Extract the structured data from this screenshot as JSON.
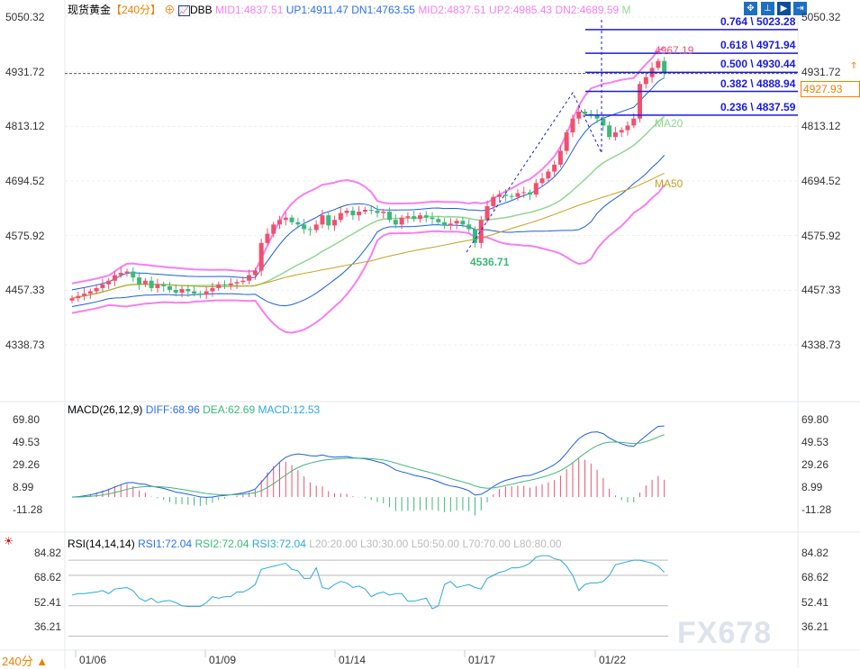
{
  "header": {
    "symbol": "现货黄金",
    "period": "【240分】",
    "indicator": "DBB",
    "mid1": "MID1:4837.51",
    "up1": "UP1:4911.47",
    "dn1": "DN1:4763.55",
    "mid2": "MID2:4837.51",
    "up2": "UP2:4985.43",
    "dn2": "DN2:4689.59",
    "m": "M"
  },
  "toolbar": [
    "move-icon",
    "crosshair-icon",
    "draw-icon",
    "exit-icon"
  ],
  "price_axis": [
    "5050.32",
    "4931.72",
    "4813.12",
    "4694.52",
    "4575.92",
    "4457.33",
    "4338.73"
  ],
  "current_price": "4927.93",
  "annotations": {
    "high": "4967.19",
    "low": "4536.71",
    "ma20": "MA20",
    "ma50": "MA50"
  },
  "fib": [
    {
      "label": "0.764 \\ 5023.28",
      "value": 5023.28
    },
    {
      "label": "0.618 \\ 4971.94",
      "value": 4971.94
    },
    {
      "label": "0.500 \\ 4930.44",
      "value": 4930.44
    },
    {
      "label": "0.382 \\ 4888.94",
      "value": 4888.94
    },
    {
      "label": "0.236 \\ 4837.59",
      "value": 4837.59
    }
  ],
  "macd": {
    "title": "MACD(26,12,9)",
    "diff": "DIFF:68.96",
    "dea": "DEA:62.69",
    "macd": "MACD:12.53",
    "axis": [
      "69.80",
      "49.53",
      "29.26",
      "8.99",
      "-11.28"
    ]
  },
  "rsi": {
    "title": "RSI(14,14,14)",
    "rsi1": "RSI1:72.04",
    "rsi2": "RSI2:72.04",
    "rsi3": "RSI3:72.04",
    "l20": "L20:20.00",
    "l30": "L30:30.00",
    "l50": "L50:50.00",
    "l70": "L70:70.00",
    "l80": "L80:80.00",
    "axis": [
      "84.82",
      "68.62",
      "52.41",
      "36.21"
    ]
  },
  "dates": [
    "01/06",
    "01/09",
    "01/14",
    "01/17",
    "01/22"
  ],
  "period_button": "240分 ▲",
  "watermark": "FX678",
  "colors": {
    "up": "#f0506e",
    "down": "#3cb878",
    "pink": "#f77ff0",
    "blue": "#1a5fe0",
    "ma20": "#8fd88f",
    "ma50": "#c8a020",
    "rsi": "#2aa8e0"
  },
  "chart_data": {
    "type": "candlestick",
    "ylim": [
      4338.73,
      5050.32
    ],
    "closes": [
      4440,
      4445,
      4450,
      4455,
      4462,
      4470,
      4478,
      4490,
      4495,
      4498,
      4485,
      4470,
      4478,
      4462,
      4470,
      4466,
      4458,
      4452,
      4460,
      4455,
      4450,
      4448,
      4455,
      4462,
      4470,
      4468,
      4472,
      4475,
      4478,
      4490,
      4500,
      4560,
      4580,
      4600,
      4610,
      4615,
      4605,
      4600,
      4590,
      4588,
      4600,
      4620,
      4598,
      4610,
      4625,
      4630,
      4620,
      4628,
      4632,
      4630,
      4625,
      4628,
      4610,
      4600,
      4615,
      4618,
      4612,
      4620,
      4615,
      4612,
      4605,
      4598,
      4602,
      4608,
      4600,
      4590,
      4560,
      4610,
      4640,
      4660,
      4665,
      4662,
      4660,
      4668,
      4670,
      4665,
      4690,
      4700,
      4715,
      4730,
      4760,
      4800,
      4830,
      4845,
      4840,
      4838,
      4830,
      4815,
      4790,
      4800,
      4805,
      4815,
      4830,
      4905,
      4920,
      4940,
      4955,
      4928
    ],
    "rsi": [
      57,
      58,
      58,
      58.5,
      59,
      60,
      58,
      61,
      61.5,
      62,
      60,
      55,
      53,
      55,
      52,
      53,
      53.5,
      52,
      50,
      49.5,
      49.5,
      49.5,
      52,
      56,
      55,
      56,
      56,
      59,
      59,
      61,
      64,
      74,
      75,
      76,
      77,
      78,
      74,
      73,
      68,
      68,
      75,
      62,
      61,
      64,
      66,
      65,
      62,
      63,
      61,
      56,
      58,
      59,
      57,
      58,
      58,
      53,
      53,
      54,
      55,
      48,
      50,
      64,
      66,
      62,
      63,
      64,
      62,
      61,
      68,
      70,
      72,
      73,
      75,
      75,
      76,
      78,
      82,
      83,
      83,
      81,
      80,
      76,
      70,
      60,
      64,
      65,
      65,
      66,
      70,
      77,
      78,
      79,
      80,
      80,
      79,
      78,
      76,
      72.04
    ],
    "rsi_ylim": [
      36.21,
      84.82
    ],
    "macd_ylim": [
      -11.28,
      69.8
    ]
  }
}
